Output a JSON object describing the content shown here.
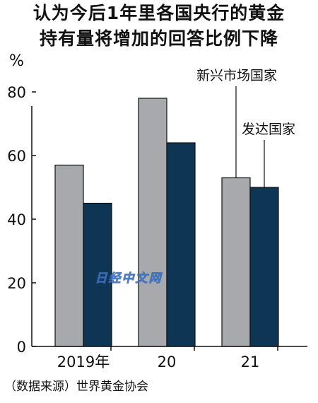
{
  "title_line1": "认为今后1年里各国央行的黄金",
  "title_line2": "持有量将增加的回答比例下降",
  "source": "（数据来源）世界黄金协会",
  "watermark": "日经中文网",
  "chart_data": {
    "type": "bar",
    "unit": "%",
    "categories": [
      "2019年",
      "20",
      "21"
    ],
    "series": [
      {
        "name": "新兴市场国家",
        "color": "#a7a9ac",
        "values": [
          57,
          78,
          53
        ]
      },
      {
        "name": "发达国家",
        "color": "#0f3555",
        "values": [
          45,
          64,
          50
        ]
      }
    ],
    "ylim": [
      0,
      90
    ],
    "yticks": [
      0,
      20,
      40,
      60,
      80
    ],
    "grid": false,
    "legend": "callout labels on 21 bars"
  }
}
